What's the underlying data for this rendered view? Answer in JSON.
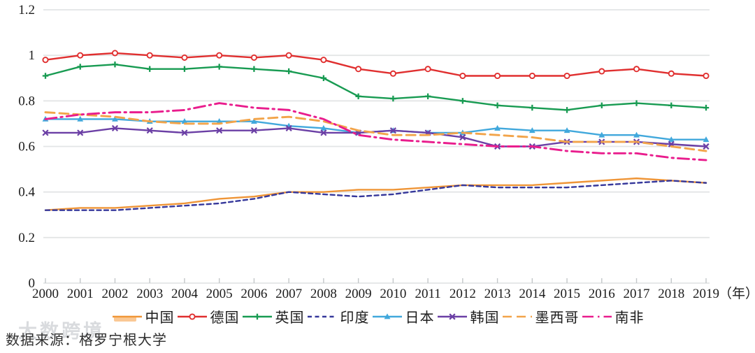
{
  "chart_data": {
    "type": "line",
    "x": [
      2000,
      2001,
      2002,
      2003,
      2004,
      2005,
      2006,
      2007,
      2008,
      2009,
      2010,
      2011,
      2012,
      2013,
      2014,
      2015,
      2016,
      2017,
      2018,
      2019
    ],
    "x_unit_label": "（年）",
    "ylim": [
      0,
      1.2
    ],
    "yticks": [
      {
        "label": "0",
        "value": 0
      },
      {
        "label": "0.2",
        "value": 0.2
      },
      {
        "label": "0.4",
        "value": 0.4
      },
      {
        "label": "0.6",
        "value": 0.6
      },
      {
        "label": "0.8",
        "value": 0.8
      },
      {
        "label": "1",
        "value": 1
      },
      {
        "label": "1.2",
        "value": 1.2
      }
    ],
    "grid": "horizontal",
    "legend_position": "bottom",
    "series": [
      {
        "id": "china",
        "name": "中国",
        "color": "#EF9537",
        "style": "solid",
        "marker": "none",
        "values": [
          0.32,
          0.33,
          0.33,
          0.34,
          0.35,
          0.37,
          0.38,
          0.4,
          0.4,
          0.41,
          0.41,
          0.42,
          0.43,
          0.43,
          0.43,
          0.44,
          0.45,
          0.46,
          0.45,
          0.44
        ]
      },
      {
        "id": "germany",
        "name": "德国",
        "color": "#E02F2F",
        "style": "solid",
        "marker": "circle",
        "values": [
          0.98,
          1.0,
          1.01,
          1.0,
          0.99,
          1.0,
          0.99,
          1.0,
          0.98,
          0.94,
          0.92,
          0.94,
          0.91,
          0.91,
          0.91,
          0.91,
          0.93,
          0.94,
          0.92,
          0.91
        ]
      },
      {
        "id": "uk",
        "name": "英国",
        "color": "#189B52",
        "style": "solid",
        "marker": "plus",
        "values": [
          0.91,
          0.95,
          0.96,
          0.94,
          0.94,
          0.95,
          0.94,
          0.93,
          0.9,
          0.82,
          0.81,
          0.82,
          0.8,
          0.78,
          0.77,
          0.76,
          0.78,
          0.79,
          0.78,
          0.77
        ]
      },
      {
        "id": "india",
        "name": "印度",
        "color": "#36389B",
        "style": "dash",
        "marker": "none",
        "values": [
          0.32,
          0.32,
          0.32,
          0.33,
          0.34,
          0.35,
          0.37,
          0.4,
          0.39,
          0.38,
          0.39,
          0.41,
          0.43,
          0.42,
          0.42,
          0.42,
          0.43,
          0.44,
          0.45,
          0.44
        ]
      },
      {
        "id": "japan",
        "name": "日本",
        "color": "#41A8DC",
        "style": "solid",
        "marker": "triangle",
        "values": [
          0.72,
          0.72,
          0.72,
          0.71,
          0.71,
          0.71,
          0.71,
          0.69,
          0.68,
          0.66,
          0.67,
          0.66,
          0.66,
          0.68,
          0.67,
          0.67,
          0.65,
          0.65,
          0.63,
          0.63
        ]
      },
      {
        "id": "korea",
        "name": "韩国",
        "color": "#6B3FA5",
        "style": "solid",
        "marker": "x",
        "values": [
          0.66,
          0.66,
          0.68,
          0.67,
          0.66,
          0.67,
          0.67,
          0.68,
          0.66,
          0.66,
          0.67,
          0.66,
          0.64,
          0.6,
          0.6,
          0.62,
          0.62,
          0.62,
          0.61,
          0.6
        ]
      },
      {
        "id": "mexico",
        "name": "墨西哥",
        "color": "#F2A44A",
        "style": "longdash",
        "marker": "none",
        "values": [
          0.75,
          0.74,
          0.73,
          0.71,
          0.7,
          0.7,
          0.72,
          0.73,
          0.71,
          0.67,
          0.65,
          0.65,
          0.66,
          0.65,
          0.64,
          0.62,
          0.62,
          0.62,
          0.6,
          0.58
        ]
      },
      {
        "id": "southafrica",
        "name": "南非",
        "color": "#E91D8D",
        "style": "dashdot",
        "marker": "none",
        "values": [
          0.72,
          0.74,
          0.75,
          0.75,
          0.76,
          0.79,
          0.77,
          0.76,
          0.72,
          0.65,
          0.63,
          0.62,
          0.61,
          0.6,
          0.6,
          0.58,
          0.57,
          0.57,
          0.55,
          0.54
        ]
      }
    ],
    "colors": {
      "grid": "#e3e5e6",
      "tick": "#c3c7c9",
      "axis_text": "#1c1c1c"
    }
  },
  "source": {
    "label": "数据来源：格罗宁根大学"
  },
  "watermark": {
    "text": "大数跨境"
  }
}
